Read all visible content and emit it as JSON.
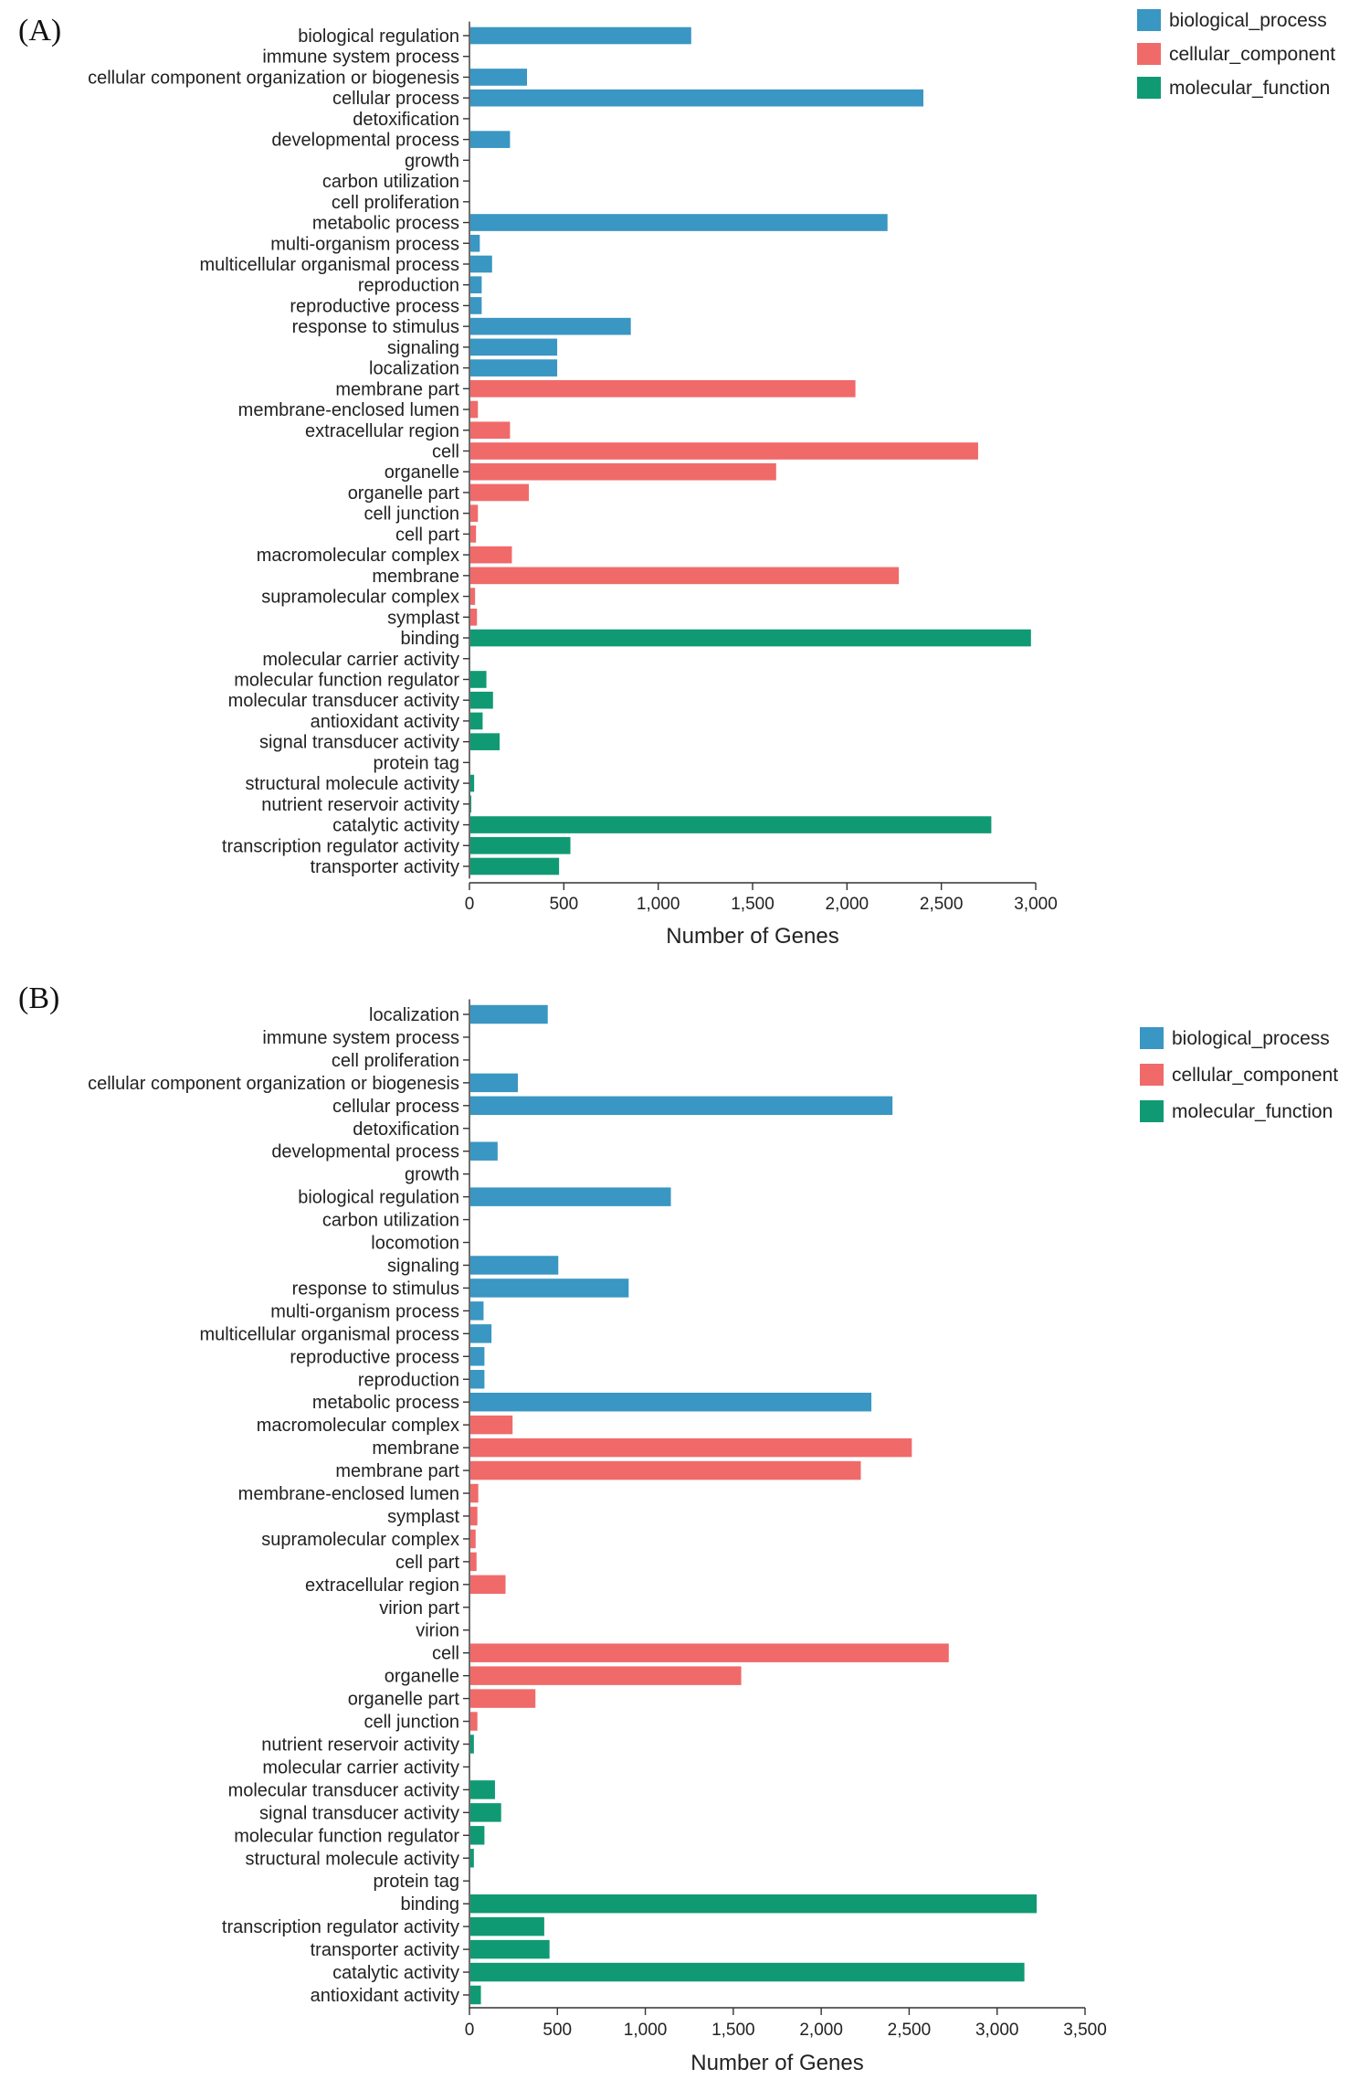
{
  "colors": {
    "biological_process": "#3a96c2",
    "cellular_component": "#f06a6a",
    "molecular_function": "#0f9a73"
  },
  "chart_data": [
    {
      "type": "bar",
      "orientation": "horizontal",
      "panel_label": "(A)",
      "xlabel": "Number of Genes",
      "xlim": [
        0,
        3000
      ],
      "xticks": [
        0,
        500,
        1000,
        1500,
        2000,
        2500,
        3000
      ],
      "xtick_labels": [
        "0",
        "500",
        "1,000",
        "1,500",
        "2,000",
        "2,500",
        "3,000"
      ],
      "legend": [
        "biological_process",
        "cellular_component",
        "molecular_function"
      ],
      "legend_position": "top-right",
      "bars": [
        {
          "label": "biological regulation",
          "value": 1170,
          "group": "biological_process"
        },
        {
          "label": "immune system process",
          "value": 0,
          "group": "biological_process"
        },
        {
          "label": "cellular component organization or biogenesis",
          "value": 300,
          "group": "biological_process"
        },
        {
          "label": "cellular process",
          "value": 2400,
          "group": "biological_process"
        },
        {
          "label": "detoxification",
          "value": 0,
          "group": "biological_process"
        },
        {
          "label": "developmental process",
          "value": 210,
          "group": "biological_process"
        },
        {
          "label": "growth",
          "value": 0,
          "group": "biological_process"
        },
        {
          "label": "carbon utilization",
          "value": 0,
          "group": "biological_process"
        },
        {
          "label": "cell proliferation",
          "value": 0,
          "group": "biological_process"
        },
        {
          "label": "metabolic process",
          "value": 2210,
          "group": "biological_process"
        },
        {
          "label": "multi-organism process",
          "value": 50,
          "group": "biological_process"
        },
        {
          "label": "multicellular organismal process",
          "value": 115,
          "group": "biological_process"
        },
        {
          "label": "reproduction",
          "value": 60,
          "group": "biological_process"
        },
        {
          "label": "reproductive process",
          "value": 60,
          "group": "biological_process"
        },
        {
          "label": "response to stimulus",
          "value": 850,
          "group": "biological_process"
        },
        {
          "label": "signaling",
          "value": 460,
          "group": "biological_process"
        },
        {
          "label": "localization",
          "value": 460,
          "group": "biological_process"
        },
        {
          "label": "membrane part",
          "value": 2040,
          "group": "cellular_component"
        },
        {
          "label": "membrane-enclosed lumen",
          "value": 40,
          "group": "cellular_component"
        },
        {
          "label": "extracellular region",
          "value": 210,
          "group": "cellular_component"
        },
        {
          "label": "cell",
          "value": 2690,
          "group": "cellular_component"
        },
        {
          "label": "organelle",
          "value": 1620,
          "group": "cellular_component"
        },
        {
          "label": "organelle part",
          "value": 310,
          "group": "cellular_component"
        },
        {
          "label": "cell junction",
          "value": 40,
          "group": "cellular_component"
        },
        {
          "label": "cell part",
          "value": 30,
          "group": "cellular_component"
        },
        {
          "label": "macromolecular complex",
          "value": 220,
          "group": "cellular_component"
        },
        {
          "label": "membrane",
          "value": 2270,
          "group": "cellular_component"
        },
        {
          "label": "supramolecular complex",
          "value": 25,
          "group": "cellular_component"
        },
        {
          "label": "symplast",
          "value": 35,
          "group": "cellular_component"
        },
        {
          "label": "binding",
          "value": 2970,
          "group": "molecular_function"
        },
        {
          "label": "molecular carrier activity",
          "value": 0,
          "group": "molecular_function"
        },
        {
          "label": "molecular function regulator",
          "value": 85,
          "group": "molecular_function"
        },
        {
          "label": "molecular transducer activity",
          "value": 120,
          "group": "molecular_function"
        },
        {
          "label": "antioxidant activity",
          "value": 65,
          "group": "molecular_function"
        },
        {
          "label": "signal transducer activity",
          "value": 155,
          "group": "molecular_function"
        },
        {
          "label": "protein tag",
          "value": 0,
          "group": "molecular_function"
        },
        {
          "label": "structural molecule activity",
          "value": 20,
          "group": "molecular_function"
        },
        {
          "label": "nutrient reservoir activity",
          "value": 5,
          "group": "molecular_function"
        },
        {
          "label": "catalytic activity",
          "value": 2760,
          "group": "molecular_function"
        },
        {
          "label": "transcription regulator activity",
          "value": 530,
          "group": "molecular_function"
        },
        {
          "label": "transporter activity",
          "value": 470,
          "group": "molecular_function"
        }
      ]
    },
    {
      "type": "bar",
      "orientation": "horizontal",
      "panel_label": "(B)",
      "xlabel": "Number of Genes",
      "xlim": [
        0,
        3500
      ],
      "xticks": [
        0,
        500,
        1000,
        1500,
        2000,
        2500,
        3000,
        3500
      ],
      "xtick_labels": [
        "0",
        "500",
        "1,000",
        "1,500",
        "2,000",
        "2,500",
        "3,000",
        "3,500"
      ],
      "legend": [
        "biological_process",
        "cellular_component",
        "molecular_function"
      ],
      "legend_position": "top-right",
      "bars": [
        {
          "label": "localization",
          "value": 440,
          "group": "biological_process"
        },
        {
          "label": "immune system process",
          "value": 0,
          "group": "biological_process"
        },
        {
          "label": "cell proliferation",
          "value": 0,
          "group": "biological_process"
        },
        {
          "label": "cellular component organization or biogenesis",
          "value": 270,
          "group": "biological_process"
        },
        {
          "label": "cellular process",
          "value": 2400,
          "group": "biological_process"
        },
        {
          "label": "detoxification",
          "value": 0,
          "group": "biological_process"
        },
        {
          "label": "developmental process",
          "value": 155,
          "group": "biological_process"
        },
        {
          "label": "growth",
          "value": 0,
          "group": "biological_process"
        },
        {
          "label": "biological regulation",
          "value": 1140,
          "group": "biological_process"
        },
        {
          "label": "carbon utilization",
          "value": 0,
          "group": "biological_process"
        },
        {
          "label": "locomotion",
          "value": 0,
          "group": "biological_process"
        },
        {
          "label": "signaling",
          "value": 500,
          "group": "biological_process"
        },
        {
          "label": "response to stimulus",
          "value": 900,
          "group": "biological_process"
        },
        {
          "label": "multi-organism process",
          "value": 75,
          "group": "biological_process"
        },
        {
          "label": "multicellular organismal process",
          "value": 120,
          "group": "biological_process"
        },
        {
          "label": "reproductive process",
          "value": 80,
          "group": "biological_process"
        },
        {
          "label": "reproduction",
          "value": 80,
          "group": "biological_process"
        },
        {
          "label": "metabolic process",
          "value": 2280,
          "group": "biological_process"
        },
        {
          "label": "macromolecular complex",
          "value": 240,
          "group": "cellular_component"
        },
        {
          "label": "membrane",
          "value": 2510,
          "group": "cellular_component"
        },
        {
          "label": "membrane part",
          "value": 2220,
          "group": "cellular_component"
        },
        {
          "label": "membrane-enclosed lumen",
          "value": 45,
          "group": "cellular_component"
        },
        {
          "label": "symplast",
          "value": 40,
          "group": "cellular_component"
        },
        {
          "label": "supramolecular complex",
          "value": 30,
          "group": "cellular_component"
        },
        {
          "label": "cell part",
          "value": 35,
          "group": "cellular_component"
        },
        {
          "label": "extracellular region",
          "value": 200,
          "group": "cellular_component"
        },
        {
          "label": "virion part",
          "value": 0,
          "group": "cellular_component"
        },
        {
          "label": "virion",
          "value": 0,
          "group": "cellular_component"
        },
        {
          "label": "cell",
          "value": 2720,
          "group": "cellular_component"
        },
        {
          "label": "organelle",
          "value": 1540,
          "group": "cellular_component"
        },
        {
          "label": "organelle part",
          "value": 370,
          "group": "cellular_component"
        },
        {
          "label": "cell junction",
          "value": 40,
          "group": "cellular_component"
        },
        {
          "label": "nutrient reservoir activity",
          "value": 20,
          "group": "molecular_function"
        },
        {
          "label": "molecular carrier activity",
          "value": 0,
          "group": "molecular_function"
        },
        {
          "label": "molecular transducer activity",
          "value": 140,
          "group": "molecular_function"
        },
        {
          "label": "signal transducer activity",
          "value": 175,
          "group": "molecular_function"
        },
        {
          "label": "molecular function regulator",
          "value": 80,
          "group": "molecular_function"
        },
        {
          "label": "structural molecule activity",
          "value": 20,
          "group": "molecular_function"
        },
        {
          "label": "protein tag",
          "value": 0,
          "group": "molecular_function"
        },
        {
          "label": "binding",
          "value": 3220,
          "group": "molecular_function"
        },
        {
          "label": "transcription regulator activity",
          "value": 420,
          "group": "molecular_function"
        },
        {
          "label": "transporter activity",
          "value": 450,
          "group": "molecular_function"
        },
        {
          "label": "catalytic activity",
          "value": 3150,
          "group": "molecular_function"
        },
        {
          "label": "antioxidant activity",
          "value": 60,
          "group": "molecular_function"
        }
      ]
    }
  ]
}
